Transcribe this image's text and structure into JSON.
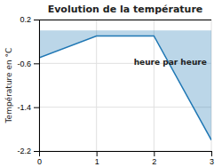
{
  "chart_data": {
    "type": "area",
    "title": "Evolution de la température",
    "y_label": "Température en °C",
    "annotation": "heure par heure",
    "x": [
      0,
      1,
      2,
      3
    ],
    "values": [
      -0.5,
      -0.1,
      -0.1,
      -2.0
    ],
    "baseline": 0.0,
    "hline": 0.2,
    "xlim": [
      0,
      3
    ],
    "ylim": [
      -2.2,
      0.2
    ],
    "xticks": [
      0,
      1,
      2,
      3
    ],
    "yticks": [
      0.2,
      -0.6,
      -1.4,
      -2.2
    ],
    "grid": true
  }
}
